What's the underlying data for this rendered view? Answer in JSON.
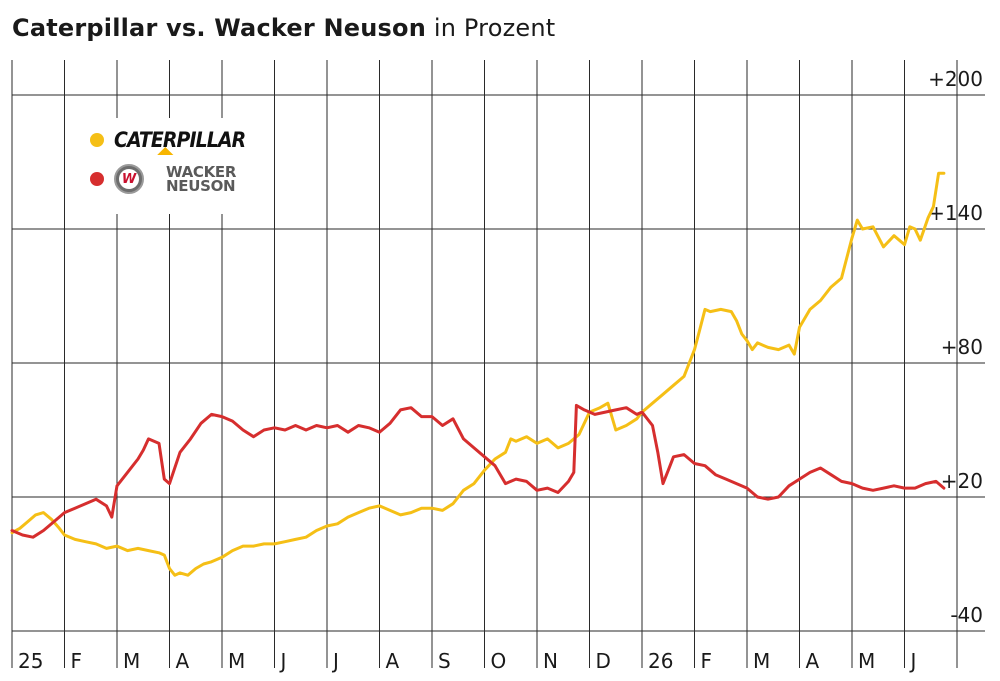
{
  "title": {
    "bold": "Caterpillar vs. Wacker Neuson",
    "light": "in Prozent"
  },
  "legend": {
    "caterpillar": {
      "logo_text": "CATERPILLAR",
      "color": "#f5bf16"
    },
    "wacker_neuson": {
      "logo_line1": "WACKER",
      "logo_line2": "NEUSON",
      "badge_letter": "W",
      "color": "#d62e2e"
    }
  },
  "chart_data": {
    "type": "line",
    "title": "Caterpillar vs. Wacker Neuson in Prozent",
    "ylim": [
      -40,
      200
    ],
    "y_ticks": [
      {
        "value": 200,
        "label": "+200"
      },
      {
        "value": 140,
        "label": "+140"
      },
      {
        "value": 80,
        "label": "+80"
      },
      {
        "value": 20,
        "label": "+20"
      },
      {
        "value": -40,
        "label": "-40"
      }
    ],
    "x_ticks": [
      "25",
      "F",
      "M",
      "A",
      "M",
      "J",
      "J",
      "A",
      "S",
      "O",
      "N",
      "D",
      "26",
      "F",
      "M",
      "A",
      "M",
      "J"
    ],
    "x_range_months": [
      0,
      17.6
    ],
    "grid": "vertical and horizontal",
    "series": [
      {
        "name": "Caterpillar",
        "color": "#f5bf16",
        "points": [
          [
            0,
            4
          ],
          [
            0.15,
            6
          ],
          [
            0.3,
            9
          ],
          [
            0.45,
            12
          ],
          [
            0.6,
            13
          ],
          [
            0.75,
            10
          ],
          [
            0.9,
            6
          ],
          [
            1.0,
            3
          ],
          [
            1.2,
            1
          ],
          [
            1.4,
            0
          ],
          [
            1.6,
            -1
          ],
          [
            1.8,
            -3
          ],
          [
            2.0,
            -2
          ],
          [
            2.2,
            -4
          ],
          [
            2.4,
            -3
          ],
          [
            2.6,
            -4
          ],
          [
            2.8,
            -5
          ],
          [
            2.9,
            -6
          ],
          [
            3.0,
            -12
          ],
          [
            3.1,
            -15
          ],
          [
            3.2,
            -14
          ],
          [
            3.35,
            -15
          ],
          [
            3.5,
            -12
          ],
          [
            3.65,
            -10
          ],
          [
            3.8,
            -9
          ],
          [
            4.0,
            -7
          ],
          [
            4.2,
            -4
          ],
          [
            4.4,
            -2
          ],
          [
            4.6,
            -2
          ],
          [
            4.8,
            -1
          ],
          [
            5.0,
            -1
          ],
          [
            5.2,
            0
          ],
          [
            5.4,
            1
          ],
          [
            5.6,
            2
          ],
          [
            5.8,
            5
          ],
          [
            6.0,
            7
          ],
          [
            6.2,
            8
          ],
          [
            6.4,
            11
          ],
          [
            6.6,
            13
          ],
          [
            6.8,
            15
          ],
          [
            7.0,
            16
          ],
          [
            7.2,
            14
          ],
          [
            7.4,
            12
          ],
          [
            7.6,
            13
          ],
          [
            7.8,
            15
          ],
          [
            8.0,
            15
          ],
          [
            8.2,
            14
          ],
          [
            8.4,
            17
          ],
          [
            8.6,
            23
          ],
          [
            8.8,
            26
          ],
          [
            9.0,
            32
          ],
          [
            9.2,
            37
          ],
          [
            9.4,
            40
          ],
          [
            9.5,
            46
          ],
          [
            9.6,
            45
          ],
          [
            9.8,
            47
          ],
          [
            10.0,
            44
          ],
          [
            10.2,
            46
          ],
          [
            10.4,
            42
          ],
          [
            10.6,
            44
          ],
          [
            10.8,
            48
          ],
          [
            11.0,
            58
          ],
          [
            11.2,
            60
          ],
          [
            11.35,
            62
          ],
          [
            11.5,
            50
          ],
          [
            11.7,
            52
          ],
          [
            11.9,
            55
          ],
          [
            12.0,
            58
          ],
          [
            12.2,
            62
          ],
          [
            12.4,
            66
          ],
          [
            12.6,
            70
          ],
          [
            12.8,
            74
          ],
          [
            13.0,
            86
          ],
          [
            13.1,
            95
          ],
          [
            13.2,
            104
          ],
          [
            13.3,
            103
          ],
          [
            13.5,
            104
          ],
          [
            13.7,
            103
          ],
          [
            13.8,
            99
          ],
          [
            13.9,
            93
          ],
          [
            14.0,
            90
          ],
          [
            14.1,
            86
          ],
          [
            14.2,
            89
          ],
          [
            14.4,
            87
          ],
          [
            14.6,
            86
          ],
          [
            14.8,
            88
          ],
          [
            14.9,
            84
          ],
          [
            15.0,
            96
          ],
          [
            15.2,
            104
          ],
          [
            15.4,
            108
          ],
          [
            15.6,
            114
          ],
          [
            15.8,
            118
          ],
          [
            16.0,
            136
          ],
          [
            16.1,
            144
          ],
          [
            16.2,
            140
          ],
          [
            16.4,
            141
          ],
          [
            16.6,
            132
          ],
          [
            16.8,
            137
          ],
          [
            17.0,
            133
          ],
          [
            17.1,
            141
          ],
          [
            17.2,
            140
          ],
          [
            17.3,
            135
          ],
          [
            17.45,
            145
          ],
          [
            17.55,
            150
          ],
          [
            17.65,
            165
          ],
          [
            17.75,
            165
          ]
        ]
      },
      {
        "name": "Wacker Neuson",
        "color": "#d62e2e",
        "points": [
          [
            0,
            5
          ],
          [
            0.2,
            3
          ],
          [
            0.4,
            2
          ],
          [
            0.6,
            5
          ],
          [
            0.8,
            9
          ],
          [
            1.0,
            13
          ],
          [
            1.2,
            15
          ],
          [
            1.4,
            17
          ],
          [
            1.6,
            19
          ],
          [
            1.8,
            16
          ],
          [
            1.9,
            11
          ],
          [
            2.0,
            25
          ],
          [
            2.2,
            31
          ],
          [
            2.4,
            37
          ],
          [
            2.5,
            41
          ],
          [
            2.6,
            46
          ],
          [
            2.8,
            44
          ],
          [
            2.9,
            28
          ],
          [
            3.0,
            26
          ],
          [
            3.2,
            40
          ],
          [
            3.4,
            46
          ],
          [
            3.6,
            53
          ],
          [
            3.8,
            57
          ],
          [
            4.0,
            56
          ],
          [
            4.2,
            54
          ],
          [
            4.4,
            50
          ],
          [
            4.6,
            47
          ],
          [
            4.8,
            50
          ],
          [
            5.0,
            51
          ],
          [
            5.2,
            50
          ],
          [
            5.4,
            52
          ],
          [
            5.6,
            50
          ],
          [
            5.8,
            52
          ],
          [
            6.0,
            51
          ],
          [
            6.2,
            52
          ],
          [
            6.4,
            49
          ],
          [
            6.6,
            52
          ],
          [
            6.8,
            51
          ],
          [
            7.0,
            49
          ],
          [
            7.2,
            53
          ],
          [
            7.4,
            59
          ],
          [
            7.6,
            60
          ],
          [
            7.8,
            56
          ],
          [
            8.0,
            56
          ],
          [
            8.2,
            52
          ],
          [
            8.4,
            55
          ],
          [
            8.6,
            46
          ],
          [
            8.8,
            42
          ],
          [
            9.0,
            38
          ],
          [
            9.2,
            34
          ],
          [
            9.4,
            26
          ],
          [
            9.6,
            28
          ],
          [
            9.8,
            27
          ],
          [
            10.0,
            23
          ],
          [
            10.2,
            24
          ],
          [
            10.4,
            22
          ],
          [
            10.6,
            27
          ],
          [
            10.7,
            31
          ],
          [
            10.75,
            61
          ],
          [
            10.9,
            59
          ],
          [
            11.1,
            57
          ],
          [
            11.3,
            58
          ],
          [
            11.5,
            59
          ],
          [
            11.7,
            60
          ],
          [
            11.9,
            57
          ],
          [
            12.0,
            58
          ],
          [
            12.2,
            52
          ],
          [
            12.3,
            40
          ],
          [
            12.4,
            26
          ],
          [
            12.5,
            32
          ],
          [
            12.6,
            38
          ],
          [
            12.8,
            39
          ],
          [
            13.0,
            35
          ],
          [
            13.2,
            34
          ],
          [
            13.4,
            30
          ],
          [
            13.6,
            28
          ],
          [
            13.8,
            26
          ],
          [
            14.0,
            24
          ],
          [
            14.2,
            20
          ],
          [
            14.4,
            19
          ],
          [
            14.6,
            20
          ],
          [
            14.8,
            25
          ],
          [
            15.0,
            28
          ],
          [
            15.2,
            31
          ],
          [
            15.4,
            33
          ],
          [
            15.6,
            30
          ],
          [
            15.8,
            27
          ],
          [
            16.0,
            26
          ],
          [
            16.2,
            24
          ],
          [
            16.4,
            23
          ],
          [
            16.6,
            24
          ],
          [
            16.8,
            25
          ],
          [
            17.0,
            24
          ],
          [
            17.2,
            24
          ],
          [
            17.4,
            26
          ],
          [
            17.6,
            27
          ],
          [
            17.75,
            24
          ]
        ]
      }
    ]
  }
}
